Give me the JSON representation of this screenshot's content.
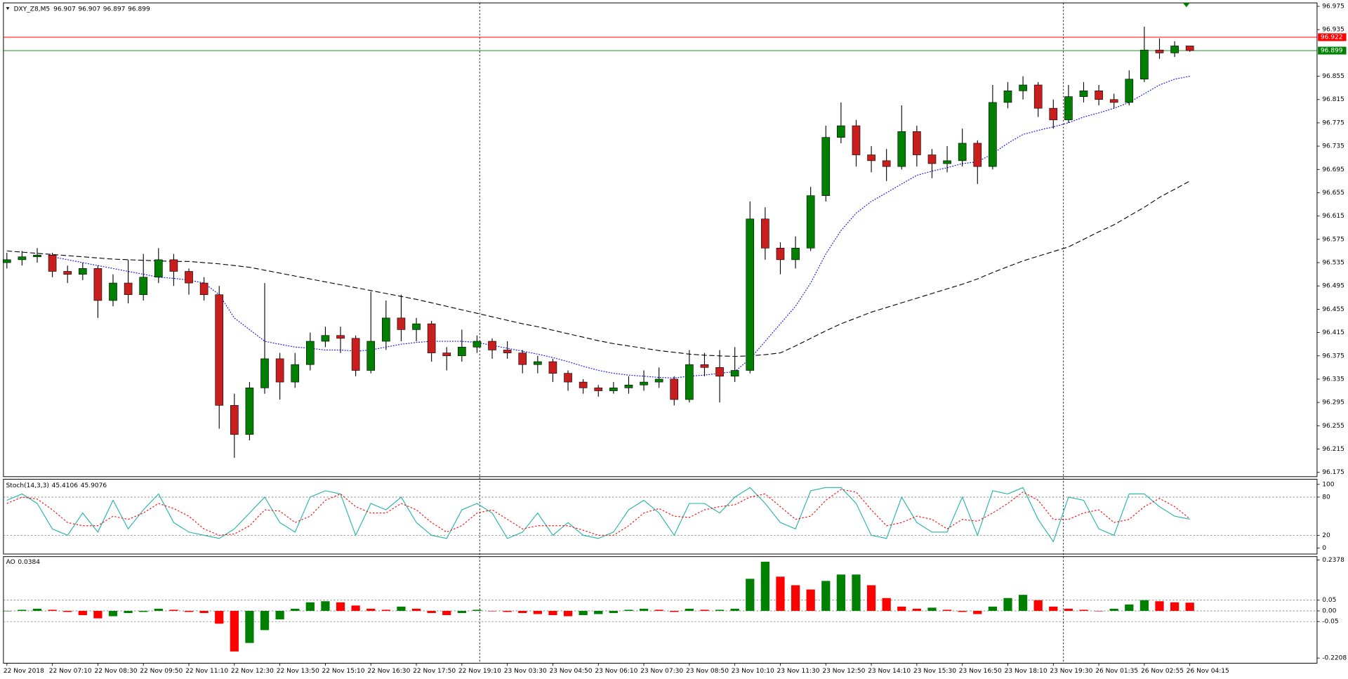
{
  "chart_data": [
    {
      "type": "candlestick",
      "title": "DXY_Z8,M5",
      "up_color": "#008000",
      "down_color": "#c81e1e",
      "wick_color": "#000000",
      "grid": false,
      "categories": [
        "22 Nov 2018",
        null,
        null,
        "22 Nov 07:10",
        null,
        null,
        "22 Nov 08:30",
        null,
        null,
        "22 Nov 09:50",
        null,
        null,
        "22 Nov 11:10",
        null,
        null,
        "22 Nov 12:30",
        null,
        null,
        "22 Nov 13:50",
        null,
        null,
        "22 Nov 15:10",
        null,
        null,
        "22 Nov 16:30",
        null,
        null,
        "22 Nov 17:50",
        null,
        null,
        "22 Nov 19:10",
        null,
        null,
        "23 Nov 03:30",
        null,
        null,
        "23 Nov 04:50",
        null,
        null,
        "23 Nov 06:10",
        null,
        null,
        "23 Nov 07:30",
        null,
        null,
        "23 Nov 08:50",
        null,
        null,
        "23 Nov 10:10",
        null,
        null,
        "23 Nov 11:30",
        null,
        null,
        "23 Nov 12:50",
        null,
        null,
        "23 Nov 14:10",
        null,
        null,
        "23 Nov 15:30",
        null,
        null,
        "23 Nov 16:50",
        null,
        null,
        "23 Nov 18:10",
        null,
        null,
        "23 Nov 19:30",
        null,
        null,
        "26 Nov 01:35",
        null,
        null,
        "26 Nov 02:55",
        null,
        null,
        "26 Nov 04:15"
      ],
      "open": [
        96.535,
        96.54,
        96.545,
        96.548,
        96.52,
        96.515,
        96.525,
        96.47,
        96.5,
        96.48,
        96.51,
        96.54,
        96.52,
        96.5,
        96.48,
        96.29,
        96.24,
        96.32,
        96.37,
        96.33,
        96.36,
        96.4,
        96.41,
        96.405,
        96.35,
        96.4,
        96.44,
        96.42,
        96.43,
        96.38,
        96.375,
        96.39,
        96.4,
        96.385,
        96.38,
        96.36,
        96.365,
        96.345,
        96.33,
        96.32,
        96.315,
        96.32,
        96.325,
        96.33,
        96.335,
        96.3,
        96.36,
        96.355,
        96.34,
        96.35,
        96.61,
        96.56,
        96.54,
        96.56,
        96.65,
        96.75,
        96.77,
        96.72,
        96.71,
        96.7,
        96.76,
        96.72,
        96.705,
        96.71,
        96.74,
        96.7,
        96.81,
        96.83,
        96.84,
        96.8,
        96.78,
        96.82,
        96.83,
        96.815,
        96.81,
        96.85,
        96.9,
        96.895,
        96.907
      ],
      "high": [
        96.552,
        96.555,
        96.56,
        96.552,
        96.53,
        96.535,
        96.53,
        96.515,
        96.54,
        96.55,
        96.56,
        96.55,
        96.525,
        96.51,
        96.495,
        96.31,
        96.33,
        96.5,
        96.38,
        96.38,
        96.415,
        96.425,
        96.425,
        96.41,
        96.485,
        96.47,
        96.48,
        96.44,
        96.435,
        96.39,
        96.42,
        96.41,
        96.405,
        96.4,
        96.385,
        96.375,
        96.37,
        96.35,
        96.335,
        96.325,
        96.33,
        96.34,
        96.35,
        96.355,
        96.34,
        96.385,
        96.38,
        96.385,
        96.39,
        96.64,
        96.63,
        96.57,
        96.58,
        96.665,
        96.77,
        96.81,
        96.78,
        96.735,
        96.73,
        96.805,
        96.77,
        96.73,
        96.735,
        96.765,
        96.745,
        96.84,
        96.845,
        96.855,
        96.845,
        96.815,
        96.84,
        96.845,
        96.84,
        96.825,
        96.865,
        96.94,
        96.92,
        96.915,
        96.907
      ],
      "low": [
        96.525,
        96.53,
        96.535,
        96.51,
        96.5,
        96.505,
        96.44,
        96.46,
        96.465,
        96.47,
        96.5,
        96.495,
        96.48,
        96.47,
        96.25,
        96.2,
        96.23,
        96.31,
        96.3,
        96.32,
        96.35,
        96.39,
        96.38,
        96.34,
        96.345,
        96.385,
        96.4,
        96.4,
        96.365,
        96.35,
        96.365,
        96.38,
        96.37,
        96.37,
        96.345,
        96.345,
        96.33,
        96.315,
        96.31,
        96.305,
        96.31,
        96.31,
        96.315,
        96.32,
        96.29,
        96.295,
        96.34,
        96.295,
        96.33,
        96.345,
        96.54,
        96.515,
        96.525,
        96.555,
        96.64,
        96.74,
        96.7,
        96.69,
        96.675,
        96.695,
        96.7,
        96.68,
        96.69,
        96.7,
        96.67,
        96.695,
        96.8,
        96.815,
        96.785,
        96.765,
        96.775,
        96.81,
        96.805,
        96.8,
        96.805,
        96.845,
        96.885,
        96.888,
        96.897
      ],
      "close": [
        96.54,
        96.545,
        96.548,
        96.52,
        96.515,
        96.525,
        96.47,
        96.5,
        96.48,
        96.51,
        96.54,
        96.52,
        96.5,
        96.48,
        96.29,
        96.24,
        96.32,
        96.37,
        96.33,
        96.36,
        96.4,
        96.41,
        96.405,
        96.35,
        96.4,
        96.44,
        96.42,
        96.43,
        96.38,
        96.375,
        96.39,
        96.4,
        96.385,
        96.38,
        96.36,
        96.365,
        96.345,
        96.33,
        96.32,
        96.315,
        96.32,
        96.325,
        96.33,
        96.335,
        96.3,
        96.36,
        96.355,
        96.34,
        96.35,
        96.61,
        96.56,
        96.54,
        96.56,
        96.65,
        96.75,
        96.77,
        96.72,
        96.71,
        96.7,
        96.76,
        96.72,
        96.705,
        96.71,
        96.74,
        96.7,
        96.81,
        96.83,
        96.84,
        96.8,
        96.78,
        96.82,
        96.83,
        96.815,
        96.81,
        96.85,
        96.9,
        96.895,
        96.907,
        96.899
      ],
      "lines": [
        {
          "color": "#0000ff",
          "dash": "1.5,1.5",
          "values": [
            null,
            null,
            null,
            96.545,
            96.54,
            96.535,
            96.53,
            96.525,
            96.52,
            96.515,
            96.51,
            96.508,
            96.505,
            96.5,
            96.48,
            96.44,
            96.42,
            96.4,
            96.395,
            96.39,
            96.388,
            96.385,
            96.385,
            96.383,
            96.385,
            96.39,
            96.395,
            96.398,
            96.4,
            96.4,
            96.4,
            96.398,
            96.393,
            96.388,
            96.383,
            96.378,
            96.372,
            96.365,
            96.357,
            96.35,
            96.345,
            96.342,
            96.34,
            96.338,
            96.337,
            96.34,
            96.342,
            96.345,
            96.348,
            96.37,
            96.4,
            96.43,
            96.46,
            96.5,
            96.55,
            96.59,
            96.62,
            96.64,
            96.655,
            96.67,
            96.685,
            96.692,
            96.698,
            96.705,
            96.708,
            96.722,
            96.74,
            96.755,
            96.762,
            96.768,
            96.775,
            96.785,
            96.792,
            96.8,
            96.81,
            96.825,
            96.84,
            96.85,
            96.855
          ]
        },
        {
          "color": "#000000",
          "dash": "6,3",
          "values": [
            96.555,
            96.553,
            96.551,
            96.549,
            96.547,
            96.545,
            96.543,
            96.541,
            96.54,
            96.539,
            96.538,
            96.537,
            96.537,
            96.535,
            96.533,
            96.53,
            96.527,
            96.522,
            96.517,
            96.512,
            96.507,
            96.502,
            96.497,
            96.492,
            96.487,
            96.482,
            96.477,
            96.472,
            96.466,
            96.46,
            96.454,
            96.448,
            96.442,
            96.436,
            96.43,
            96.425,
            96.419,
            96.413,
            96.407,
            96.401,
            96.396,
            96.392,
            96.388,
            96.384,
            96.381,
            96.378,
            96.376,
            96.375,
            96.374,
            96.375,
            96.377,
            96.38,
            96.392,
            96.405,
            96.418,
            96.43,
            96.44,
            96.45,
            96.458,
            96.466,
            96.474,
            96.482,
            96.49,
            96.498,
            96.507,
            96.518,
            96.528,
            96.538,
            96.546,
            96.554,
            96.562,
            96.575,
            96.588,
            96.6,
            96.615,
            96.63,
            96.647,
            96.661,
            96.675
          ]
        }
      ],
      "levels": [
        {
          "value": 96.922,
          "color": "#ff0000"
        },
        {
          "value": 96.899,
          "color": "#008000"
        }
      ],
      "ylim": [
        96.175,
        96.975
      ],
      "yticks": [
        96.975,
        96.935,
        96.855,
        96.815,
        96.775,
        96.735,
        96.695,
        96.655,
        96.615,
        96.575,
        96.535,
        96.495,
        96.455,
        96.415,
        96.375,
        96.335,
        96.295,
        96.255,
        96.215,
        96.175
      ]
    },
    {
      "type": "line",
      "title": "Stoch(14,3,3)",
      "grid": true,
      "ylim": [
        0,
        100
      ],
      "yticks": [
        100,
        80,
        20,
        0
      ],
      "series": [
        {
          "color": "#20b2aa",
          "dash": "",
          "values": [
            75,
            85,
            70,
            30,
            20,
            55,
            25,
            75,
            30,
            60,
            85,
            40,
            25,
            20,
            15,
            30,
            55,
            80,
            40,
            25,
            80,
            90,
            85,
            20,
            70,
            60,
            80,
            40,
            20,
            15,
            60,
            70,
            55,
            15,
            25,
            55,
            20,
            40,
            20,
            15,
            25,
            60,
            75,
            55,
            20,
            70,
            70,
            55,
            80,
            95,
            70,
            40,
            30,
            90,
            95,
            95,
            70,
            20,
            15,
            80,
            40,
            25,
            25,
            80,
            20,
            90,
            85,
            95,
            45,
            10,
            80,
            75,
            30,
            20,
            85,
            85,
            65,
            50,
            45.4106
          ]
        },
        {
          "color": "#ff0000",
          "dash": "2,2",
          "values": [
            70,
            80,
            77,
            60,
            40,
            35,
            35,
            50,
            45,
            55,
            70,
            62,
            50,
            30,
            20,
            22,
            35,
            60,
            58,
            40,
            50,
            75,
            85,
            65,
            55,
            55,
            70,
            60,
            40,
            25,
            35,
            55,
            60,
            45,
            30,
            35,
            35,
            35,
            28,
            20,
            20,
            35,
            55,
            62,
            50,
            48,
            60,
            65,
            68,
            80,
            85,
            65,
            45,
            50,
            75,
            92,
            88,
            60,
            35,
            40,
            50,
            45,
            30,
            45,
            42,
            55,
            70,
            88,
            75,
            45,
            45,
            55,
            60,
            40,
            45,
            65,
            78,
            65,
            45.9076
          ]
        }
      ]
    },
    {
      "type": "bar",
      "title": "AO",
      "grid": true,
      "up_color": "#008000",
      "down_color": "#ff0000",
      "ylim": [
        -0.2208,
        0.2378
      ],
      "yticks": [
        0.2378,
        0.05,
        {
          "value": 0,
          "label": "0.00"
        },
        -0.05,
        -0.2208
      ],
      "values": [
        0,
        0.005,
        0.01,
        0.005,
        -0.005,
        -0.02,
        -0.035,
        -0.025,
        -0.01,
        -0.005,
        0.01,
        0.005,
        -0.005,
        -0.01,
        -0.06,
        -0.19,
        -0.15,
        -0.09,
        -0.04,
        0.01,
        0.04,
        0.045,
        0.04,
        0.025,
        0.01,
        0.005,
        0.02,
        0.01,
        -0.01,
        -0.02,
        -0.01,
        0.005,
        0,
        -0.005,
        -0.01,
        -0.015,
        -0.02,
        -0.025,
        -0.02,
        -0.015,
        -0.01,
        0.005,
        0.01,
        0.005,
        -0.005,
        0.01,
        0.005,
        0.005,
        0.01,
        0.15,
        0.23,
        0.16,
        0.12,
        0.1,
        0.14,
        0.17,
        0.17,
        0.12,
        0.06,
        0.02,
        0.01,
        0.015,
        0.005,
        -0.005,
        -0.015,
        0.02,
        0.06,
        0.075,
        0.05,
        0.02,
        0.01,
        0.005,
        0,
        0.01,
        0.03,
        0.05,
        0.045,
        0.04,
        0.0384
      ]
    }
  ]
}
